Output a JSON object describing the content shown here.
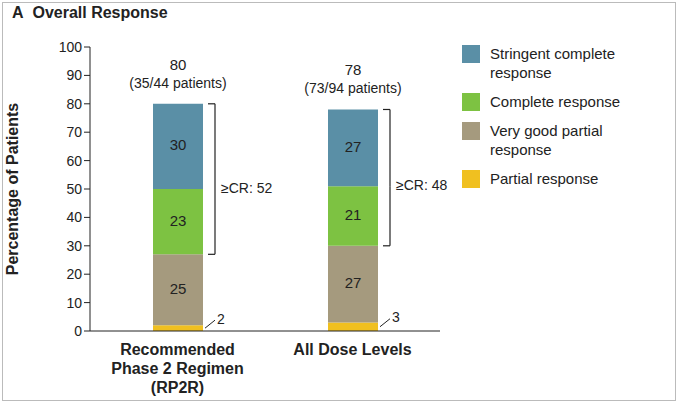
{
  "chart_data": {
    "type": "bar",
    "panel": "A",
    "title": "Overall Response",
    "y_label": "Percentage of Patients",
    "categories": [
      "Recommended Phase 2 Regimen (RP2R)",
      "All Dose Levels"
    ],
    "series": [
      {
        "name": "Partial response",
        "color": "#f0c020",
        "values": [
          2,
          3
        ]
      },
      {
        "name": "Very good partial response",
        "color": "#a59a7e",
        "values": [
          25,
          27
        ]
      },
      {
        "name": "Complete response",
        "color": "#7dc242",
        "values": [
          23,
          21
        ]
      },
      {
        "name": "Stringent complete response",
        "color": "#5a8fa6",
        "values": [
          30,
          27
        ]
      }
    ],
    "stacked": true,
    "data_labels": true,
    "totals": [
      80,
      78
    ],
    "total_labels": [
      "(35/44 patients)",
      "(73/94 patients)"
    ],
    "annotations": [
      "≥CR: 52",
      "≥CR: 48"
    ],
    "ylim": [
      0,
      100
    ],
    "yticks": [
      0,
      10,
      20,
      30,
      40,
      50,
      60,
      70,
      80,
      90,
      100
    ],
    "grid": false
  }
}
